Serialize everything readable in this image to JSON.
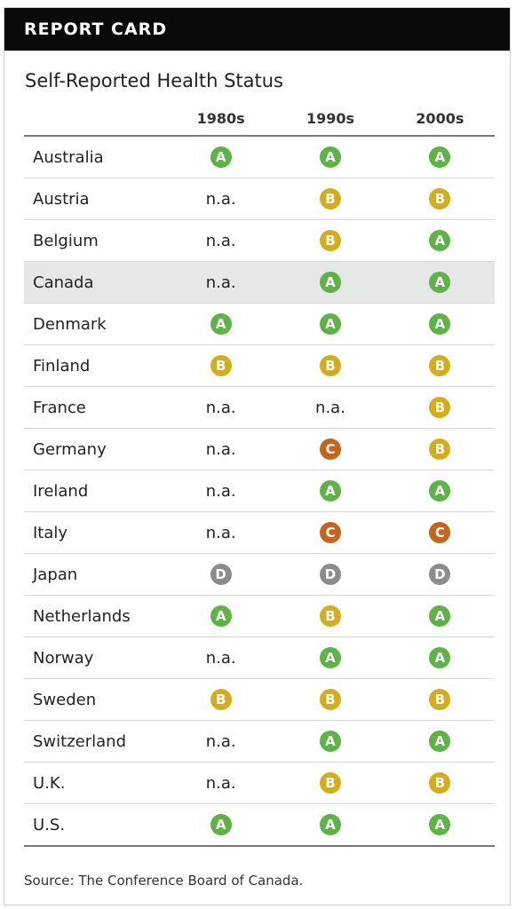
{
  "header": {
    "title": "REPORT CARD"
  },
  "subtitle": "Self-Reported Health Status",
  "columns": [
    "1980s",
    "1990s",
    "2000s"
  ],
  "grade_colors": {
    "A": "#5db346",
    "B": "#d3ad1c",
    "C": "#c4651d",
    "D": "#8c8c8c"
  },
  "highlight_row": "Canada",
  "rows": [
    {
      "country": "Australia",
      "grades": [
        "A",
        "A",
        "A"
      ]
    },
    {
      "country": "Austria",
      "grades": [
        "n.a.",
        "B",
        "B"
      ]
    },
    {
      "country": "Belgium",
      "grades": [
        "n.a.",
        "B",
        "A"
      ]
    },
    {
      "country": "Canada",
      "grades": [
        "n.a.",
        "A",
        "A"
      ]
    },
    {
      "country": "Denmark",
      "grades": [
        "A",
        "A",
        "A"
      ]
    },
    {
      "country": "Finland",
      "grades": [
        "B",
        "B",
        "B"
      ]
    },
    {
      "country": "France",
      "grades": [
        "n.a.",
        "n.a.",
        "B"
      ]
    },
    {
      "country": "Germany",
      "grades": [
        "n.a.",
        "C",
        "B"
      ]
    },
    {
      "country": "Ireland",
      "grades": [
        "n.a.",
        "A",
        "A"
      ]
    },
    {
      "country": "Italy",
      "grades": [
        "n.a.",
        "C",
        "C"
      ]
    },
    {
      "country": "Japan",
      "grades": [
        "D",
        "D",
        "D"
      ]
    },
    {
      "country": "Netherlands",
      "grades": [
        "A",
        "B",
        "A"
      ]
    },
    {
      "country": "Norway",
      "grades": [
        "n.a.",
        "A",
        "A"
      ]
    },
    {
      "country": "Sweden",
      "grades": [
        "B",
        "B",
        "B"
      ]
    },
    {
      "country": "Switzerland",
      "grades": [
        "n.a.",
        "A",
        "A"
      ]
    },
    {
      "country": "U.K.",
      "grades": [
        "n.a.",
        "B",
        "B"
      ]
    },
    {
      "country": "U.S.",
      "grades": [
        "A",
        "A",
        "A"
      ]
    }
  ],
  "source": "Source: The Conference Board of Canada."
}
